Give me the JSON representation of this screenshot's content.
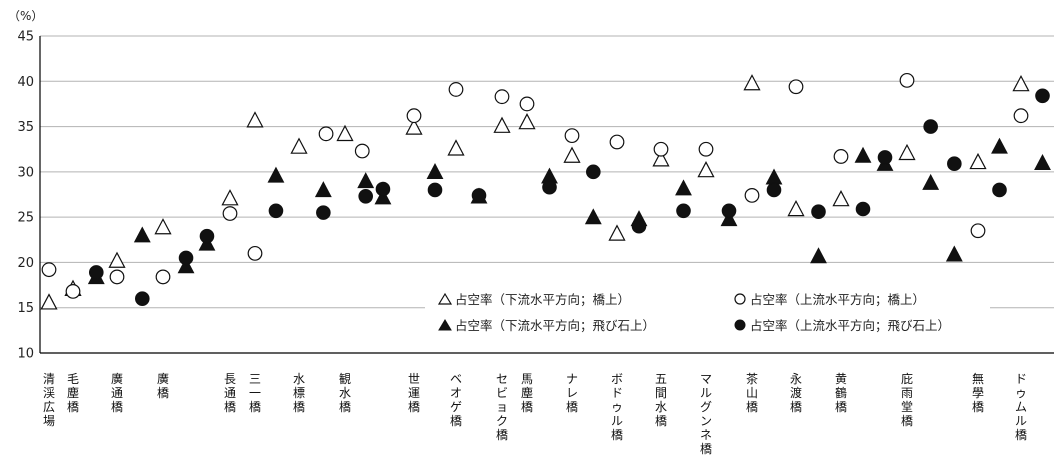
{
  "chart_data": {
    "type": "scatter",
    "unit_label": "（%）",
    "ylim": [
      10,
      45
    ],
    "yticks": [
      10,
      15,
      20,
      25,
      30,
      35,
      40,
      45
    ],
    "grid": true,
    "legend_position": "lower-right",
    "categories": [
      "清渓広場",
      "毛塵橋",
      "廣通橋",
      "廣橋",
      "長通橋",
      "三一橋",
      "水標橋",
      "観水橋",
      "世運橋",
      "ベオゲ橋",
      "セビョク橋",
      "馬塵橋",
      "ナレ橋",
      "ボドゥル橋",
      "五間水橋",
      "マルグンネ橋",
      "茶山橋",
      "永渡橋",
      "黄鶴橋",
      "庇雨堂橋",
      "無學橋",
      "ドゥムル橋"
    ],
    "series": [
      {
        "name": "占空率（下流水平方向；橋上）",
        "marker": "triangle-open",
        "points": [
          [
            1.3,
            15.5
          ],
          [
            2.2,
            17.0
          ],
          [
            3.9,
            20.1
          ],
          [
            5.9,
            23.8
          ],
          [
            9.1,
            27.0
          ],
          [
            10.1,
            35.6
          ],
          [
            12.2,
            32.7
          ],
          [
            13.9,
            34.1
          ],
          [
            17.9,
            34.8
          ],
          [
            19.9,
            32.5
          ],
          [
            21.9,
            35.0
          ],
          [
            22.9,
            35.4
          ],
          [
            24.9,
            31.7
          ],
          [
            26.8,
            23.1
          ],
          [
            28.8,
            31.3
          ],
          [
            30.8,
            30.1
          ],
          [
            32.8,
            39.7
          ],
          [
            34.8,
            25.8
          ],
          [
            36.8,
            26.9
          ],
          [
            39.8,
            32.0
          ],
          [
            42.8,
            31.0
          ],
          [
            44.8,
            39.6
          ]
        ]
      },
      {
        "name": "占空率（上流水平方向；橋上）",
        "marker": "circle-open",
        "points": [
          [
            1.3,
            19.2
          ],
          [
            2.2,
            16.8
          ],
          [
            3.9,
            18.4
          ],
          [
            5.9,
            18.4
          ],
          [
            9.1,
            25.4
          ],
          [
            10.1,
            21.0
          ],
          [
            13.2,
            34.2
          ],
          [
            14.9,
            32.3
          ],
          [
            17.9,
            36.2
          ],
          [
            19.9,
            39.1
          ],
          [
            21.9,
            38.3
          ],
          [
            22.9,
            37.5
          ],
          [
            24.9,
            34.0
          ],
          [
            26.8,
            33.3
          ],
          [
            28.8,
            32.5
          ],
          [
            30.8,
            32.5
          ],
          [
            32.8,
            27.4
          ],
          [
            34.8,
            39.4
          ],
          [
            36.8,
            31.7
          ],
          [
            39.8,
            40.1
          ],
          [
            42.8,
            23.5
          ],
          [
            44.8,
            36.2
          ]
        ]
      },
      {
        "name": "占空率（下流水平方向；飛び石上）",
        "marker": "triangle-filled",
        "points": [
          [
            3.1,
            18.3
          ],
          [
            5.0,
            22.9
          ],
          [
            7.0,
            19.5
          ],
          [
            8.0,
            22.0
          ],
          [
            11.1,
            29.5
          ],
          [
            13.1,
            27.9
          ],
          [
            15.1,
            28.9
          ],
          [
            16.1,
            27.1
          ],
          [
            18.9,
            29.9
          ],
          [
            20.9,
            27.2
          ],
          [
            23.9,
            29.4
          ],
          [
            25.8,
            24.9
          ],
          [
            27.8,
            24.7
          ],
          [
            29.8,
            28.1
          ],
          [
            31.8,
            24.7
          ],
          [
            33.8,
            29.3
          ],
          [
            35.8,
            20.6
          ],
          [
            37.8,
            31.7
          ],
          [
            38.8,
            30.8
          ],
          [
            40.8,
            28.7
          ],
          [
            41.8,
            20.8
          ],
          [
            43.8,
            32.7
          ],
          [
            45.8,
            30.9
          ]
        ]
      },
      {
        "name": "占空率（上流水平方向；飛び石上）",
        "marker": "circle-filled",
        "points": [
          [
            3.1,
            18.9
          ],
          [
            5.0,
            16.0
          ],
          [
            7.0,
            20.5
          ],
          [
            8.0,
            22.9
          ],
          [
            11.1,
            25.7
          ],
          [
            13.1,
            25.5
          ],
          [
            15.1,
            27.3
          ],
          [
            16.1,
            28.1
          ],
          [
            18.9,
            28.0
          ],
          [
            20.9,
            27.4
          ],
          [
            23.9,
            28.3
          ],
          [
            25.8,
            30.0
          ],
          [
            27.8,
            24.0
          ],
          [
            29.8,
            25.7
          ],
          [
            31.8,
            25.7
          ],
          [
            33.8,
            28.0
          ],
          [
            35.8,
            25.6
          ],
          [
            37.8,
            25.9
          ],
          [
            38.8,
            31.6
          ],
          [
            40.8,
            35.0
          ],
          [
            41.8,
            30.9
          ],
          [
            43.8,
            28.0
          ],
          [
            45.8,
            38.4
          ]
        ]
      }
    ]
  }
}
